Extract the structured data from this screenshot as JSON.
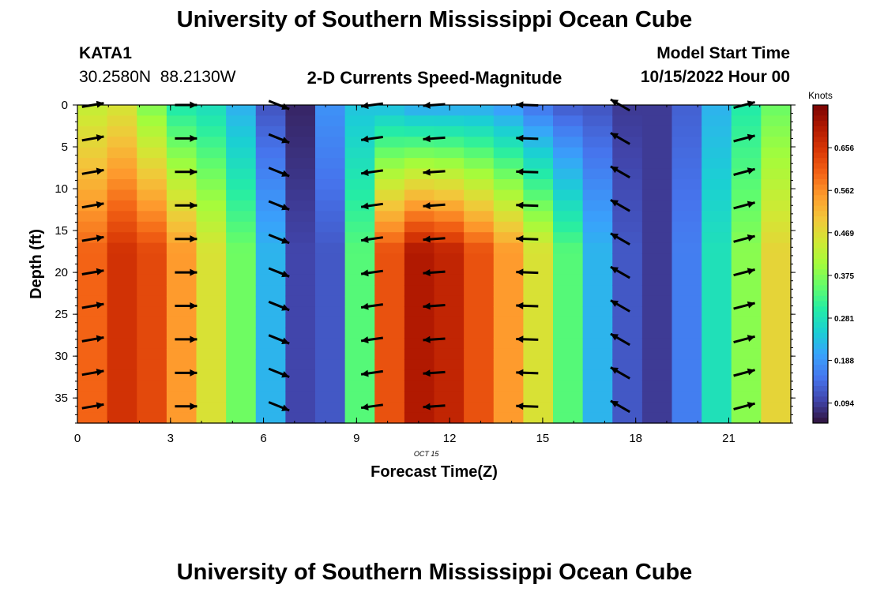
{
  "page": {
    "title": "University of Southern Mississippi Ocean Cube",
    "station_id": "KATA1",
    "station_coords": "30.2580N  88.2130W",
    "subtitle": "2-D Currents Speed-Magnitude",
    "model_start_label": "Model Start Time",
    "model_start_value": "10/15/2022 Hour 00",
    "footer_title": "University of Southern Mississippi Ocean Cube",
    "date_label": "OCT 15"
  },
  "colors": {
    "colormap": [
      "#30123b",
      "#4145ab",
      "#4675ed",
      "#39a2fc",
      "#1bcfd4",
      "#24eca6",
      "#61fc6c",
      "#a4fc3b",
      "#d1e834",
      "#f3c63a",
      "#fe9b2d",
      "#f36315",
      "#d93806",
      "#b11901",
      "#7a0403"
    ],
    "arrow": "#000000",
    "frame": "#000000"
  },
  "chart_data": {
    "type": "heatmap",
    "xlabel": "Forecast Time(Z)",
    "ylabel": "Depth (ft)",
    "xlim": [
      0,
      23
    ],
    "ylim": [
      38,
      0
    ],
    "xticks": [
      0,
      3,
      6,
      9,
      12,
      15,
      18,
      21
    ],
    "yticks": [
      0,
      5,
      10,
      15,
      20,
      25,
      30,
      35
    ],
    "colorbar": {
      "title": "Knots",
      "vmin": 0.05,
      "vmax": 0.75,
      "ticks": [
        0.094,
        0.188,
        0.281,
        0.375,
        0.469,
        0.562,
        0.656
      ]
    },
    "hours": [
      0,
      1,
      2,
      3,
      4,
      5,
      6,
      7,
      8,
      9,
      10,
      11,
      12,
      13,
      14,
      15,
      16,
      17,
      18,
      19,
      20,
      21,
      22,
      23
    ],
    "speed_profile_knots": {
      "surface": [
        0.44,
        0.46,
        0.38,
        0.3,
        0.28,
        0.22,
        0.12,
        0.07,
        0.18,
        0.24,
        0.24,
        0.22,
        0.22,
        0.22,
        0.2,
        0.16,
        0.13,
        0.12,
        0.09,
        0.09,
        0.13,
        0.22,
        0.3,
        0.36
      ],
      "bottom": [
        0.6,
        0.66,
        0.63,
        0.55,
        0.46,
        0.36,
        0.22,
        0.1,
        0.12,
        0.34,
        0.62,
        0.7,
        0.68,
        0.62,
        0.55,
        0.46,
        0.34,
        0.22,
        0.12,
        0.09,
        0.16,
        0.28,
        0.38,
        0.48
      ]
    },
    "arrow_hours": [
      0.5,
      3.5,
      6.5,
      9.5,
      11.5,
      14.5,
      17.5,
      21.5
    ],
    "arrow_depths_ft": [
      0,
      4,
      8,
      12,
      16,
      20,
      24,
      28,
      32,
      36
    ],
    "arrow_directions_deg": [
      80,
      90,
      112,
      262,
      266,
      272,
      300,
      75
    ]
  }
}
